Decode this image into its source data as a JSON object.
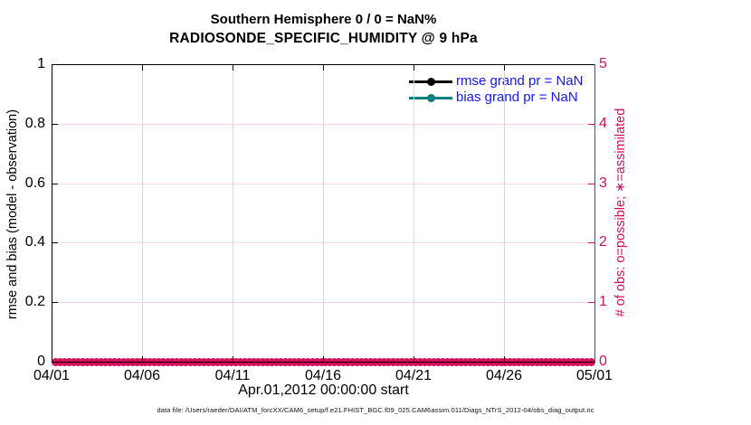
{
  "title": {
    "line1": "Southern Hemisphere 0 / 0 = NaN%",
    "line2": "RADIOSONDE_SPECIFIC_HUMIDITY @ 9 hPa"
  },
  "axes": {
    "left": {
      "label": "rmse and bias (model - observation)",
      "ticks": [
        "0",
        "0.2",
        "0.4",
        "0.6",
        "0.8",
        "1"
      ]
    },
    "right": {
      "label": "# of obs: o=possible; ∗=assimilated",
      "ticks": [
        "0",
        "1",
        "2",
        "3",
        "4",
        "5"
      ]
    },
    "x": {
      "label": "Apr.01,2012 00:00:00 start",
      "ticks": [
        "04/01",
        "04/06",
        "04/11",
        "04/16",
        "04/21",
        "04/26",
        "05/01"
      ]
    }
  },
  "legend": [
    {
      "label": "rmse grand pr = NaN",
      "color": "#000000"
    },
    {
      "label": "bias grand pr = NaN",
      "color": "#008080"
    }
  ],
  "footer": {
    "text": "data file: /Users/raeder/DAI/ATM_forcXX/CAM6_setup/f.e21.FHIST_BGC.f09_025.CAM6assim.011/Diags_NTrS_2012-04/obs_diag_output.nc"
  },
  "colors": {
    "obs_pink": "#d4105c",
    "legend_text_blue": "#1414ff",
    "bias_teal": "#008080",
    "rmse_black": "#000000",
    "grid_horizontal_pink": "#f7d2e2",
    "grid_vertical_gray": "#d9d9d9"
  },
  "chart_data": {
    "type": "line",
    "title": "Southern Hemisphere 0 / 0 = NaN% | RADIOSONDE_SPECIFIC_HUMIDITY @ 9 hPa",
    "xlabel": "Apr.01,2012 00:00:00 start",
    "ylabel_left": "rmse and bias (model - observation)",
    "ylabel_right": "# of obs: o=possible; ∗=assimilated",
    "xticklabels": [
      "04/01",
      "04/06",
      "04/11",
      "04/16",
      "04/21",
      "04/26",
      "05/01"
    ],
    "x_range": [
      "04/01",
      "05/01"
    ],
    "ylim_left": [
      0,
      1
    ],
    "ylim_right": [
      0,
      5
    ],
    "grid": true,
    "legend_position": "upper right",
    "series": [
      {
        "name": "rmse grand pr = NaN",
        "axis": "left",
        "color": "#000000",
        "marker": "filled-circle",
        "values": "NaN (no curve drawn)"
      },
      {
        "name": "bias grand pr = NaN",
        "axis": "left",
        "color": "#008080",
        "marker": "filled-circle",
        "values": "NaN (no curve drawn)"
      },
      {
        "name": "# of obs possible (o)",
        "axis": "right",
        "color": "#d4105c",
        "marker": "o",
        "value_all_points": 0,
        "n_points": 120
      },
      {
        "name": "# of obs assimilated (∗)",
        "axis": "right",
        "color": "#d4105c",
        "marker": "∗",
        "value_all_points": 0,
        "n_points": 120
      }
    ]
  }
}
